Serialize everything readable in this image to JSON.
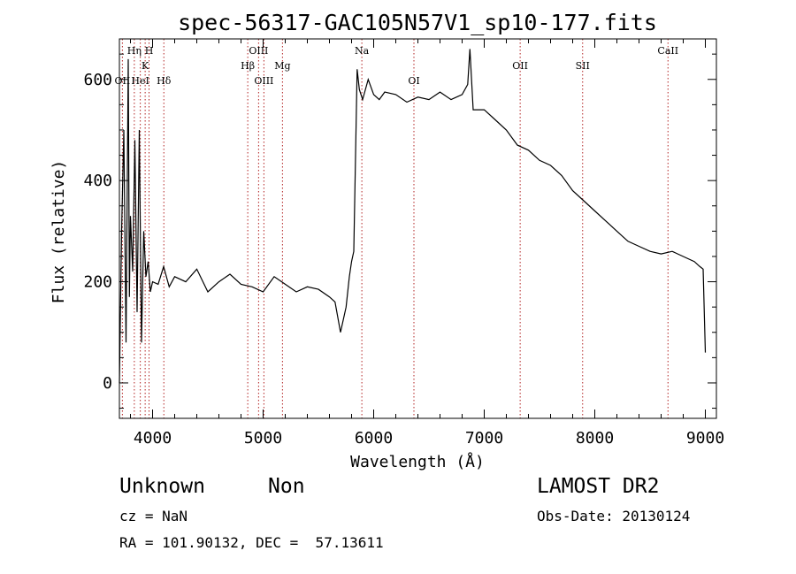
{
  "chart_data": {
    "type": "line",
    "title": "spec-56317-GAC105N57V1_sp10-177.fits",
    "xlabel": "Wavelength (Å)",
    "ylabel": "Flux (relative)",
    "xlim": [
      3700,
      9100
    ],
    "ylim": [
      -70,
      680
    ],
    "xticks": [
      4000,
      5000,
      6000,
      7000,
      8000,
      9000
    ],
    "yticks": [
      0,
      200,
      400,
      600
    ],
    "grid": false,
    "series": [
      {
        "x": [
          3700,
          3720,
          3740,
          3760,
          3780,
          3790,
          3800,
          3820,
          3840,
          3860,
          3880,
          3900,
          3920,
          3940,
          3960,
          3980,
          4000,
          4050,
          4100,
          4150,
          4200,
          4300,
          4400,
          4500,
          4600,
          4700,
          4800,
          4900,
          5000,
          5100,
          5200,
          5300,
          5400,
          5500,
          5600,
          5650,
          5700,
          5750,
          5780,
          5800,
          5820,
          5850,
          5870,
          5900,
          5950,
          6000,
          6050,
          6100,
          6200,
          6300,
          6400,
          6500,
          6600,
          6700,
          6800,
          6850,
          6870,
          6900,
          7000,
          7100,
          7200,
          7300,
          7400,
          7500,
          7600,
          7700,
          7800,
          7900,
          8000,
          8100,
          8200,
          8300,
          8400,
          8500,
          8600,
          8700,
          8800,
          8900,
          8950,
          8980,
          9000
        ],
        "y": [
          0,
          300,
          500,
          80,
          640,
          170,
          330,
          220,
          480,
          140,
          500,
          80,
          300,
          210,
          240,
          180,
          200,
          195,
          230,
          190,
          210,
          200,
          225,
          180,
          200,
          215,
          195,
          190,
          180,
          210,
          195,
          180,
          190,
          185,
          170,
          160,
          100,
          150,
          210,
          240,
          260,
          620,
          580,
          560,
          600,
          570,
          560,
          575,
          570,
          555,
          565,
          560,
          575,
          560,
          570,
          590,
          660,
          540,
          540,
          520,
          500,
          470,
          460,
          440,
          430,
          410,
          380,
          360,
          340,
          320,
          300,
          280,
          270,
          260,
          255,
          260,
          250,
          240,
          230,
          225,
          60
        ]
      }
    ],
    "line_markers": [
      {
        "label": "Hη",
        "x": 3835,
        "row": 0
      },
      {
        "label": "H",
        "x": 3968,
        "row": 0
      },
      {
        "label": "K",
        "x": 3933,
        "row": 1
      },
      {
        "label": "OII",
        "x": 3727,
        "row": 2
      },
      {
        "label": "HeI",
        "x": 3889,
        "row": 2
      },
      {
        "label": "Hδ",
        "x": 4102,
        "row": 2
      },
      {
        "label": "OIII",
        "x": 4959,
        "row": 0
      },
      {
        "label": "Hβ",
        "x": 4861,
        "row": 1
      },
      {
        "label": "Mg",
        "x": 5175,
        "row": 1
      },
      {
        "label": "OIII",
        "x": 5007,
        "row": 2
      },
      {
        "label": "Na",
        "x": 5893,
        "row": 0
      },
      {
        "label": "OI",
        "x": 6364,
        "row": 2
      },
      {
        "label": "OII",
        "x": 7325,
        "row": 1
      },
      {
        "label": "SII",
        "x": 7890,
        "row": 1
      },
      {
        "label": "CaII",
        "x": 8662,
        "row": 0
      }
    ]
  },
  "info": {
    "class": "Unknown",
    "subclass": "Non",
    "survey": "LAMOST DR2",
    "cz": "cz = NaN",
    "obs_date": "Obs-Date: 20130124",
    "coords": "RA = 101.90132, DEC =  57.13611"
  }
}
